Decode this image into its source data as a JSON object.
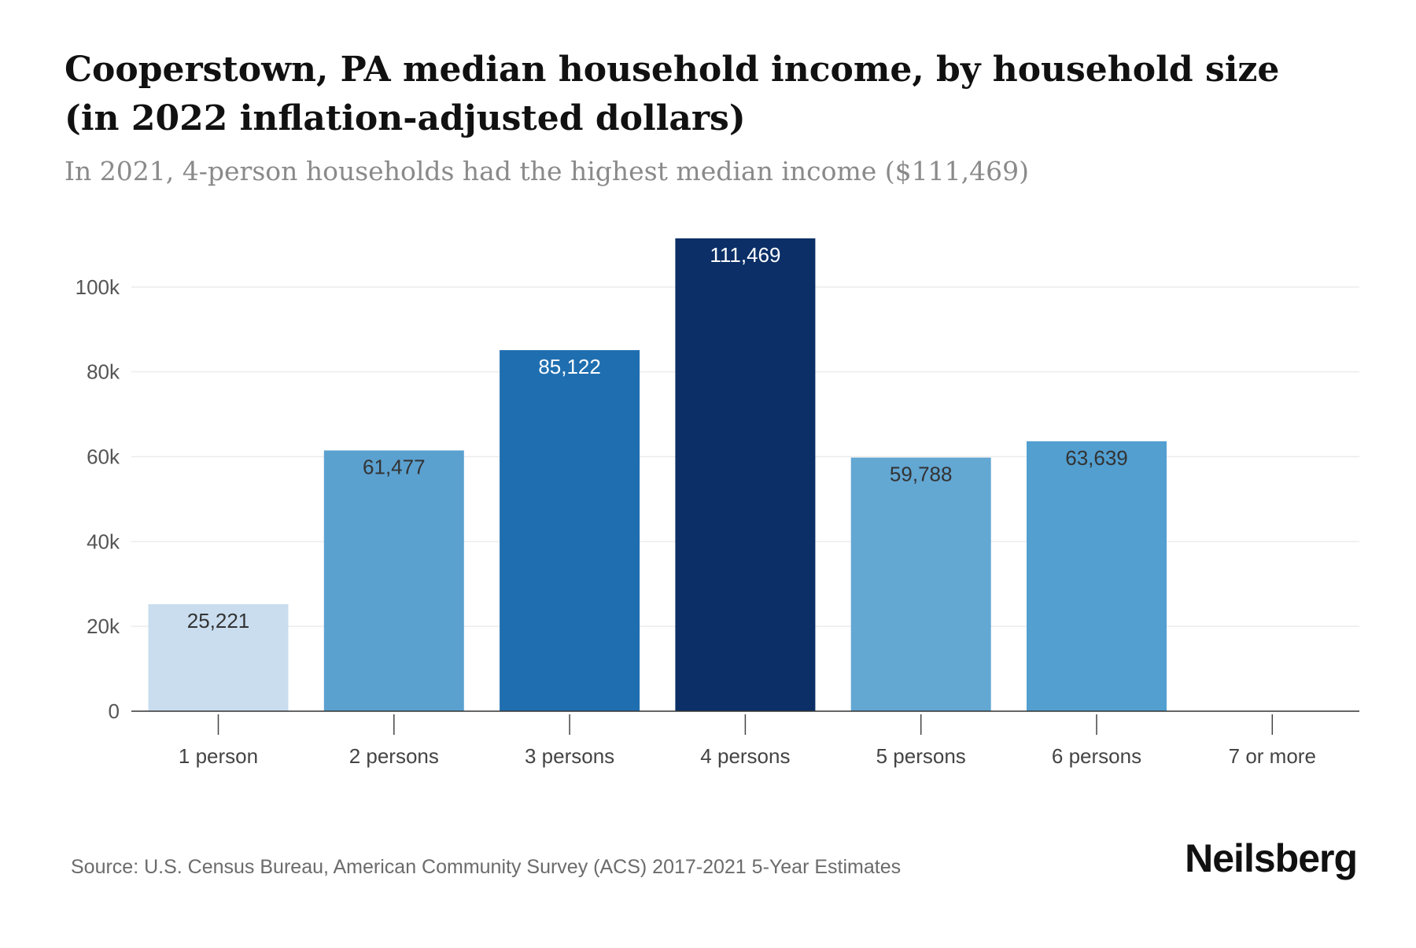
{
  "title": "Cooperstown, PA median household income, by household size (in 2022 inflation-adjusted dollars)",
  "subtitle": "In 2021, 4-person households had the highest median income ($111,469)",
  "source": "Source: U.S. Census Bureau, American Community Survey (ACS) 2017-2021 5-Year Estimates",
  "brand": "Neilsberg",
  "chart_data": {
    "type": "bar",
    "title": "Cooperstown, PA median household income, by household size (in 2022 inflation-adjusted dollars)",
    "subtitle": "In 2021, 4-person households had the highest median income ($111,469)",
    "xlabel": "",
    "ylabel": "",
    "categories": [
      "1 person",
      "2 persons",
      "3 persons",
      "4 persons",
      "5 persons",
      "6 persons",
      "7 or more"
    ],
    "values": [
      25221,
      61477,
      85122,
      111469,
      59788,
      63639,
      null
    ],
    "value_labels": [
      "25,221",
      "61,477",
      "85,122",
      "111,469",
      "59,788",
      "63,639",
      ""
    ],
    "bar_colors": [
      "#c9ddef",
      "#5ba1d0",
      "#1f6eb0",
      "#0b2f66",
      "#63a7d3",
      "#529fd0",
      "#ffffff"
    ],
    "label_colors": [
      "#333333",
      "#333333",
      "#ffffff",
      "#ffffff",
      "#333333",
      "#333333",
      "#333333"
    ],
    "ylim": [
      0,
      111469
    ],
    "yticks": [
      0,
      20000,
      40000,
      60000,
      80000,
      100000
    ],
    "ytick_labels": [
      "0",
      "20k",
      "40k",
      "60k",
      "80k",
      "100k"
    ],
    "grid": true,
    "legend": "none"
  }
}
